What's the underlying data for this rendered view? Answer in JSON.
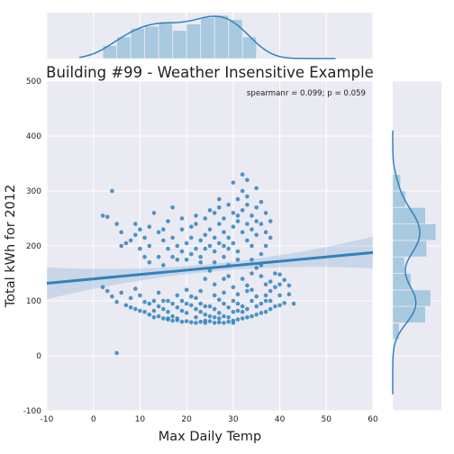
{
  "chart_data": {
    "type": "scatter",
    "title": "Building #99 - Weather Insensitive Example",
    "xlabel": "Max Daily Temp",
    "ylabel": "Total kWh for 2012",
    "xlim": [
      -10,
      60
    ],
    "ylim": [
      -100,
      500
    ],
    "xticks": [
      -10,
      0,
      10,
      20,
      30,
      40,
      50,
      60
    ],
    "yticks": [
      -100,
      0,
      100,
      200,
      300,
      400,
      500
    ],
    "grid": true,
    "annotation": "spearmanr = 0.099; p = 0.059",
    "colors": {
      "points": "#3182bd",
      "fit_line": "#3182bd",
      "hist": "#a8c9df",
      "background": "#eaeaf2"
    },
    "regression": {
      "x": [
        -10,
        60
      ],
      "y": [
        132,
        188
      ]
    },
    "marginal_x_hist": {
      "bins": [
        2,
        5,
        8,
        11,
        14,
        17,
        20,
        23,
        26,
        29,
        32,
        35
      ],
      "counts": [
        6,
        10,
        14,
        15,
        17,
        13,
        16,
        19,
        20,
        18,
        10
      ]
    },
    "marginal_y_hist": {
      "bins": [
        30,
        60,
        90,
        120,
        150,
        180,
        210,
        240,
        270,
        300,
        330
      ],
      "counts": [
        5,
        25,
        29,
        14,
        9,
        26,
        33,
        25,
        10,
        6
      ]
    },
    "points": [
      [
        2,
        255
      ],
      [
        3,
        253
      ],
      [
        4,
        300
      ],
      [
        5,
        240
      ],
      [
        6,
        225
      ],
      [
        7,
        205
      ],
      [
        8,
        210
      ],
      [
        9,
        220
      ],
      [
        10,
        195
      ],
      [
        11,
        215
      ],
      [
        12,
        235
      ],
      [
        12,
        200
      ],
      [
        13,
        260
      ],
      [
        14,
        225
      ],
      [
        15,
        210
      ],
      [
        16,
        195
      ],
      [
        16,
        245
      ],
      [
        17,
        180
      ],
      [
        17,
        270
      ],
      [
        18,
        200
      ],
      [
        19,
        190
      ],
      [
        19,
        230
      ],
      [
        20,
        205
      ],
      [
        21,
        215
      ],
      [
        21,
        185
      ],
      [
        22,
        195
      ],
      [
        22,
        240
      ],
      [
        23,
        210
      ],
      [
        23,
        180
      ],
      [
        24,
        220
      ],
      [
        24,
        250
      ],
      [
        25,
        200
      ],
      [
        25,
        230
      ],
      [
        26,
        260
      ],
      [
        26,
        215
      ],
      [
        26,
        190
      ],
      [
        27,
        240
      ],
      [
        27,
        205
      ],
      [
        27,
        270
      ],
      [
        28,
        180
      ],
      [
        28,
        225
      ],
      [
        28,
        250
      ],
      [
        29,
        215
      ],
      [
        29,
        195
      ],
      [
        29,
        275
      ],
      [
        30,
        235
      ],
      [
        30,
        205
      ],
      [
        30,
        260
      ],
      [
        31,
        245
      ],
      [
        31,
        190
      ],
      [
        31,
        285
      ],
      [
        32,
        225
      ],
      [
        32,
        265
      ],
      [
        32,
        300
      ],
      [
        32,
        330
      ],
      [
        33,
        240
      ],
      [
        33,
        210
      ],
      [
        33,
        275
      ],
      [
        33,
        320
      ],
      [
        34,
        255
      ],
      [
        34,
        230
      ],
      [
        34,
        200
      ],
      [
        35,
        245
      ],
      [
        35,
        270
      ],
      [
        35,
        305
      ],
      [
        36,
        240
      ],
      [
        36,
        280
      ],
      [
        37,
        260
      ],
      [
        37,
        225
      ],
      [
        38,
        245
      ],
      [
        38,
        215
      ],
      [
        14,
        180
      ],
      [
        15,
        165
      ],
      [
        18,
        175
      ],
      [
        20,
        175
      ],
      [
        23,
        170
      ],
      [
        26,
        170
      ],
      [
        29,
        165
      ],
      [
        31,
        175
      ],
      [
        34,
        175
      ],
      [
        36,
        185
      ],
      [
        24,
        195
      ],
      [
        19,
        250
      ],
      [
        30,
        315
      ],
      [
        33,
        290
      ],
      [
        9,
        240
      ],
      [
        11,
        180
      ],
      [
        22,
        255
      ],
      [
        27,
        285
      ],
      [
        15,
        230
      ],
      [
        12,
        170
      ],
      [
        35,
        220
      ],
      [
        28,
        200
      ],
      [
        21,
        235
      ],
      [
        10,
        230
      ],
      [
        17,
        215
      ],
      [
        25,
        265
      ],
      [
        31,
        255
      ],
      [
        6,
        200
      ],
      [
        37,
        200
      ],
      [
        2,
        125
      ],
      [
        3,
        118
      ],
      [
        4,
        108
      ],
      [
        5,
        98
      ],
      [
        6,
        115
      ],
      [
        7,
        92
      ],
      [
        8,
        88
      ],
      [
        9,
        85
      ],
      [
        10,
        82
      ],
      [
        11,
        80
      ],
      [
        12,
        75
      ],
      [
        13,
        70
      ],
      [
        14,
        72
      ],
      [
        15,
        68
      ],
      [
        16,
        66
      ],
      [
        17,
        64
      ],
      [
        18,
        65
      ],
      [
        19,
        62
      ],
      [
        20,
        63
      ],
      [
        21,
        61
      ],
      [
        22,
        60
      ],
      [
        23,
        62
      ],
      [
        24,
        64
      ],
      [
        25,
        63
      ],
      [
        26,
        60
      ],
      [
        27,
        61
      ],
      [
        28,
        60
      ],
      [
        29,
        62
      ],
      [
        30,
        64
      ],
      [
        31,
        66
      ],
      [
        32,
        68
      ],
      [
        33,
        70
      ],
      [
        34,
        72
      ],
      [
        35,
        75
      ],
      [
        36,
        78
      ],
      [
        37,
        80
      ],
      [
        38,
        85
      ],
      [
        39,
        90
      ],
      [
        40,
        92
      ],
      [
        41,
        96
      ],
      [
        13,
        100
      ],
      [
        14,
        90
      ],
      [
        15,
        85
      ],
      [
        16,
        80
      ],
      [
        17,
        95
      ],
      [
        18,
        88
      ],
      [
        19,
        82
      ],
      [
        20,
        78
      ],
      [
        21,
        92
      ],
      [
        22,
        85
      ],
      [
        23,
        80
      ],
      [
        24,
        75
      ],
      [
        25,
        90
      ],
      [
        26,
        85
      ],
      [
        27,
        78
      ],
      [
        28,
        72
      ],
      [
        29,
        88
      ],
      [
        30,
        80
      ],
      [
        31,
        95
      ],
      [
        32,
        90
      ],
      [
        33,
        85
      ],
      [
        34,
        100
      ],
      [
        35,
        108
      ],
      [
        36,
        95
      ],
      [
        37,
        110
      ],
      [
        38,
        118
      ],
      [
        39,
        125
      ],
      [
        40,
        130
      ],
      [
        41,
        138
      ],
      [
        42,
        128
      ],
      [
        8,
        105
      ],
      [
        10,
        110
      ],
      [
        12,
        95
      ],
      [
        14,
        115
      ],
      [
        16,
        100
      ],
      [
        18,
        110
      ],
      [
        20,
        120
      ],
      [
        22,
        105
      ],
      [
        24,
        140
      ],
      [
        26,
        130
      ],
      [
        28,
        115
      ],
      [
        30,
        125
      ],
      [
        32,
        140
      ],
      [
        34,
        150
      ],
      [
        36,
        145
      ],
      [
        38,
        135
      ],
      [
        40,
        148
      ],
      [
        42,
        112
      ],
      [
        43,
        95
      ],
      [
        9,
        122
      ],
      [
        11,
        98
      ],
      [
        27,
        102
      ],
      [
        29,
        145
      ],
      [
        31,
        112
      ],
      [
        33,
        128
      ],
      [
        35,
        160
      ],
      [
        37,
        130
      ],
      [
        39,
        150
      ],
      [
        25,
        155
      ],
      [
        21,
        108
      ],
      [
        24,
        90
      ],
      [
        26,
        70
      ],
      [
        28,
        95
      ],
      [
        30,
        100
      ],
      [
        19,
        100
      ],
      [
        17,
        72
      ],
      [
        15,
        100
      ],
      [
        23,
        95
      ],
      [
        25,
        72
      ],
      [
        29,
        70
      ],
      [
        33,
        118
      ],
      [
        35,
        90
      ],
      [
        26,
        110
      ],
      [
        28,
        140
      ],
      [
        23,
        118
      ],
      [
        20,
        95
      ],
      [
        36,
        165
      ],
      [
        22,
        70
      ],
      [
        18,
        68
      ],
      [
        16,
        68
      ],
      [
        13,
        82
      ],
      [
        27,
        68
      ],
      [
        31,
        82
      ],
      [
        34,
        120
      ],
      [
        38,
        100
      ],
      [
        40,
        110
      ],
      [
        30,
        60
      ],
      [
        24,
        60
      ],
      [
        32,
        80
      ],
      [
        37,
        100
      ],
      [
        5,
        5
      ]
    ]
  }
}
